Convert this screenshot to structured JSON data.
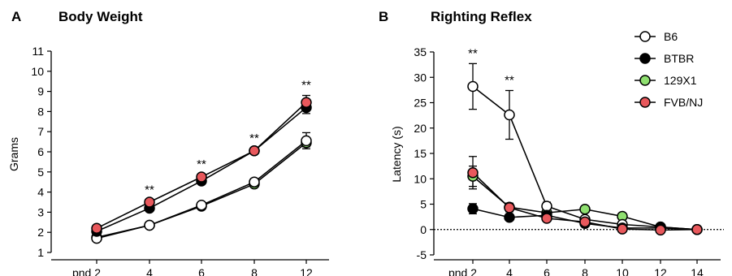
{
  "colors": {
    "B6": "#ffffff",
    "BTBR": "#000000",
    "129X1": "#8fe070",
    "FVB/NJ": "#e8585c"
  },
  "legend": {
    "placement": "top-right",
    "entries": [
      "B6",
      "BTBR",
      "129X1",
      "FVB/NJ"
    ]
  },
  "chart_data": [
    {
      "type": "line",
      "panel": "A",
      "title": "Body Weight",
      "xlabel": "",
      "ylabel": "Grams",
      "ylim": [
        1,
        11
      ],
      "yticks": [
        1,
        2,
        3,
        4,
        5,
        6,
        7,
        8,
        9,
        10,
        11
      ],
      "x": [
        "pnd 2",
        "4",
        "6",
        "8",
        "12"
      ],
      "grid": false,
      "series": [
        {
          "name": "B6",
          "values": [
            1.7,
            2.35,
            3.35,
            4.5,
            6.55
          ],
          "err": [
            0.08,
            0.1,
            0.12,
            0.15,
            0.4
          ]
        },
        {
          "name": "BTBR",
          "values": [
            2.05,
            3.2,
            4.55,
            6.05,
            8.2
          ],
          "err": [
            0.08,
            0.1,
            0.12,
            0.12,
            0.3
          ]
        },
        {
          "name": "129X1",
          "values": [
            1.75,
            2.35,
            3.3,
            4.4,
            6.45
          ],
          "err": [
            0.05,
            0.08,
            0.1,
            0.1,
            0.2
          ]
        },
        {
          "name": "FVB/NJ",
          "values": [
            2.2,
            3.5,
            4.75,
            6.05,
            8.45
          ],
          "err": [
            0.08,
            0.1,
            0.12,
            0.12,
            0.35
          ]
        }
      ],
      "annotations": [
        {
          "x": "4",
          "text": "**"
        },
        {
          "x": "6",
          "text": "**"
        },
        {
          "x": "8",
          "text": "**"
        },
        {
          "x": "12",
          "text": "**"
        }
      ]
    },
    {
      "type": "line",
      "panel": "B",
      "title": "Righting Reflex",
      "xlabel": "",
      "ylabel": "Latency (s)",
      "ylim": [
        -5,
        35
      ],
      "yticks": [
        -5,
        0,
        5,
        10,
        15,
        20,
        25,
        30,
        35
      ],
      "x": [
        "pnd 2",
        "4",
        "6",
        "8",
        "10",
        "12",
        "14"
      ],
      "grid": false,
      "reference_line": 0,
      "series": [
        {
          "name": "B6",
          "values": [
            28.2,
            22.6,
            4.6,
            2.0,
            1.0,
            0.5,
            0
          ],
          "err": [
            4.5,
            4.8,
            0.8,
            0.5,
            0.3,
            0.2,
            0
          ]
        },
        {
          "name": "BTBR",
          "values": [
            4.1,
            2.4,
            2.8,
            1.2,
            0.3,
            0.3,
            0
          ],
          "err": [
            1.0,
            0.5,
            0.5,
            0.3,
            0.2,
            0.1,
            0
          ]
        },
        {
          "name": "129X1",
          "values": [
            10.5,
            4.4,
            3.3,
            4.0,
            2.6,
            0.5,
            0
          ],
          "err": [
            2.0,
            0.8,
            0.6,
            0.6,
            0.5,
            0.2,
            0
          ]
        },
        {
          "name": "FVB/NJ",
          "values": [
            11.2,
            4.3,
            2.2,
            1.5,
            0.1,
            -0.1,
            0
          ],
          "err": [
            3.2,
            0.8,
            0.5,
            0.4,
            0.1,
            0.1,
            0
          ]
        }
      ],
      "annotations": [
        {
          "x": "pnd 2",
          "text": "**"
        },
        {
          "x": "4",
          "text": "**"
        }
      ]
    }
  ]
}
